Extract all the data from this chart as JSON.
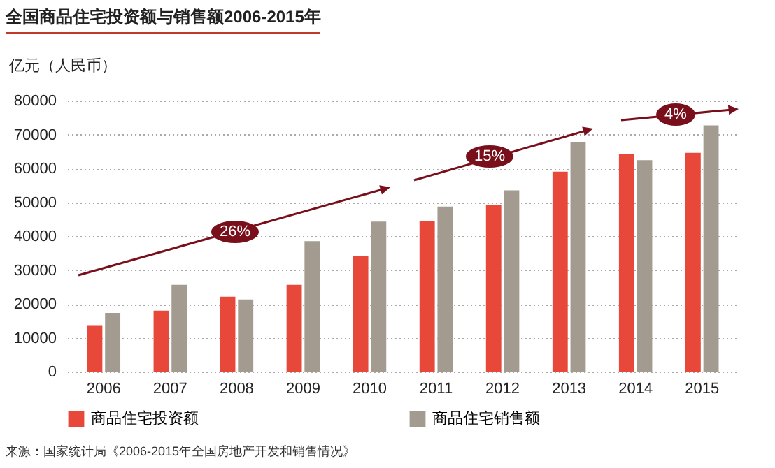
{
  "chart_data": {
    "type": "bar",
    "title": "全国商品住宅投资额与销售额2006-2015年",
    "ylabel": "亿元（人民币）",
    "categories": [
      "2006",
      "2007",
      "2008",
      "2009",
      "2010",
      "2011",
      "2012",
      "2013",
      "2014",
      "2015"
    ],
    "series": [
      {
        "name": "商品住宅投资额",
        "color": "#e8483a",
        "values": [
          13700,
          18000,
          22100,
          25600,
          34100,
          44400,
          49300,
          59000,
          64300,
          64600
        ]
      },
      {
        "name": "商品住宅销售额",
        "color": "#a39a90",
        "values": [
          17300,
          25600,
          21300,
          38500,
          44300,
          48700,
          53500,
          67800,
          62400,
          72700
        ]
      }
    ],
    "ylim": [
      0,
      80000
    ],
    "yticks": [
      0,
      10000,
      20000,
      30000,
      40000,
      50000,
      60000,
      70000,
      80000
    ],
    "grid": "y",
    "legend": "bottom",
    "annotations": [
      "26%",
      "15%",
      "4%",
      "来源：国家统计局《2006-2015年全国房地产开发和销售情况》"
    ]
  }
}
